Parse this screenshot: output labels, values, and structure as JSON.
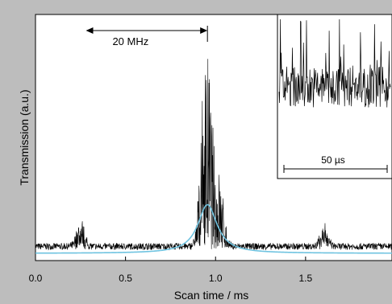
{
  "chart_data": {
    "type": "line",
    "xlabel": "Scan time / ms",
    "ylabel": "Transmission (a.u.)",
    "xlim": [
      0.0,
      1.98
    ],
    "ylim": [
      0,
      1
    ],
    "x_ticks": [
      {
        "value": 0.0,
        "label": "0.0"
      },
      {
        "value": 0.5,
        "label": "0.5"
      },
      {
        "value": 1.0,
        "label": "1.0"
      },
      {
        "value": 1.5,
        "label": "1.5"
      }
    ],
    "grid": false,
    "y_tick_labels": false,
    "series": [
      {
        "kind": "noisy-signal",
        "color": "#000000",
        "baseline": 0.03,
        "peaks": [
          {
            "center": 0.25,
            "amplitude": 0.14,
            "width": 0.03
          },
          {
            "center": 0.95,
            "amplitude": 0.92,
            "width": 0.04
          },
          {
            "center": 1.02,
            "amplitude": 0.32,
            "width": 0.035
          },
          {
            "center": 1.6,
            "amplitude": 0.12,
            "width": 0.03
          }
        ]
      },
      {
        "kind": "lorentzian-fit",
        "color": "#6fc3e0",
        "center": 0.955,
        "amplitude": 0.22,
        "hwhm": 0.065,
        "offset": 0.0
      }
    ],
    "annotations": [
      {
        "text": "20 MHz",
        "kind": "double-arrow",
        "from_x": 0.28,
        "to_x": 0.955,
        "at_y": 0.94
      }
    ],
    "inset": {
      "type": "line",
      "color": "#000000",
      "scale_bar_label": "50 µs",
      "box_corner": "top-right"
    }
  }
}
